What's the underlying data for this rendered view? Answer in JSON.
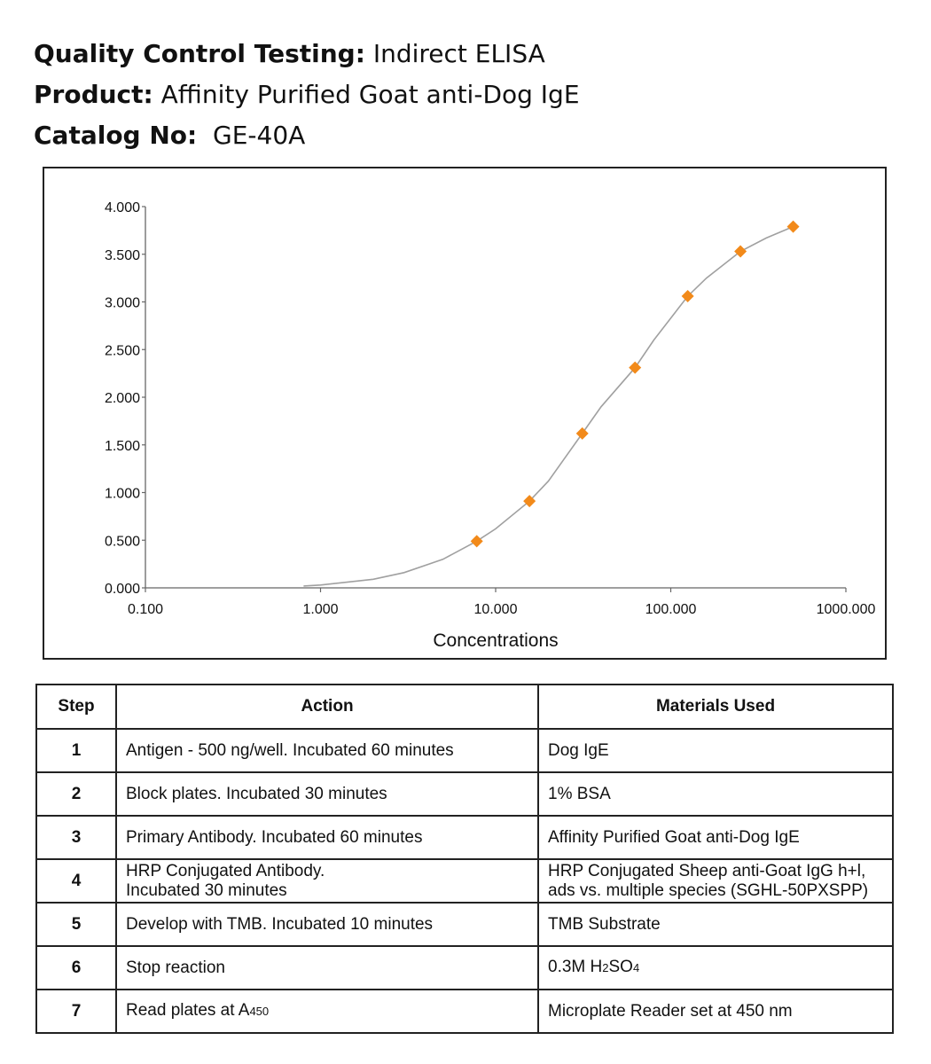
{
  "header": {
    "qc_label": "Quality Control Testing:",
    "qc_value": "Indirect ELISA",
    "product_label": "Product:",
    "product_value": "Affinity Purified Goat anti-Dog IgE",
    "catalog_label": "Catalog No:",
    "catalog_value": "GE-40A"
  },
  "chart_data": {
    "type": "scatter",
    "title": "",
    "xlabel": "Concentrations",
    "ylabel": "",
    "x_scale": "log",
    "xlim": [
      0.1,
      1000
    ],
    "ylim": [
      0,
      4
    ],
    "x_ticks": [
      "0.100",
      "1.000",
      "10.000",
      "100.000",
      "1000.000"
    ],
    "y_ticks": [
      "0.000",
      "0.500",
      "1.000",
      "1.500",
      "2.000",
      "2.500",
      "3.000",
      "3.500",
      "4.000"
    ],
    "grid": false,
    "legend": "none",
    "marker": "diamond",
    "marker_color": "#F28A1A",
    "curve_color": "#a0a0a0",
    "series": [
      {
        "x": [
          7.8,
          15.6,
          31.25,
          62.5,
          125,
          250,
          500
        ],
        "y": [
          0.49,
          0.91,
          1.62,
          2.31,
          3.06,
          3.53,
          3.79
        ]
      }
    ],
    "fit_curve": {
      "x": [
        0.8,
        1,
        2,
        3,
        5,
        7.8,
        10,
        15.6,
        20,
        31.25,
        40,
        62.5,
        80,
        125,
        160,
        250,
        350,
        500
      ],
      "y": [
        0.02,
        0.03,
        0.09,
        0.16,
        0.3,
        0.49,
        0.62,
        0.91,
        1.12,
        1.62,
        1.9,
        2.31,
        2.6,
        3.06,
        3.25,
        3.53,
        3.67,
        3.79
      ]
    }
  },
  "table": {
    "headers": [
      "Step",
      "Action",
      "Materials Used"
    ],
    "rows": [
      {
        "step": "1",
        "action": "Antigen - 500 ng/well. Incubated 60 minutes",
        "material": "Dog IgE"
      },
      {
        "step": "2",
        "action": "Block plates. Incubated 30 minutes",
        "material": "1% BSA"
      },
      {
        "step": "3",
        "action": "Primary Antibody.  Incubated 60 minutes",
        "material": "Affinity Purified Goat anti-Dog IgE"
      },
      {
        "step": "4",
        "action_line1": "HRP Conjugated Antibody.",
        "action_line2": "Incubated 30 minutes",
        "material_line1": "HRP Conjugated Sheep anti-Goat IgG h+l,",
        "material_line2": "ads vs. multiple species (SGHL-50PXSPP)"
      },
      {
        "step": "5",
        "action": "Develop with TMB.  Incubated 10 minutes",
        "material": "TMB Substrate"
      },
      {
        "step": "6",
        "action": "Stop reaction",
        "material_main": "0.3M H",
        "material_sub1": "2",
        "material_mid": "SO",
        "material_sub2": "4"
      },
      {
        "step": "7",
        "action_main": "Read plates at A",
        "action_sub": "450",
        "material": "Microplate Reader set at 450 nm"
      }
    ]
  }
}
